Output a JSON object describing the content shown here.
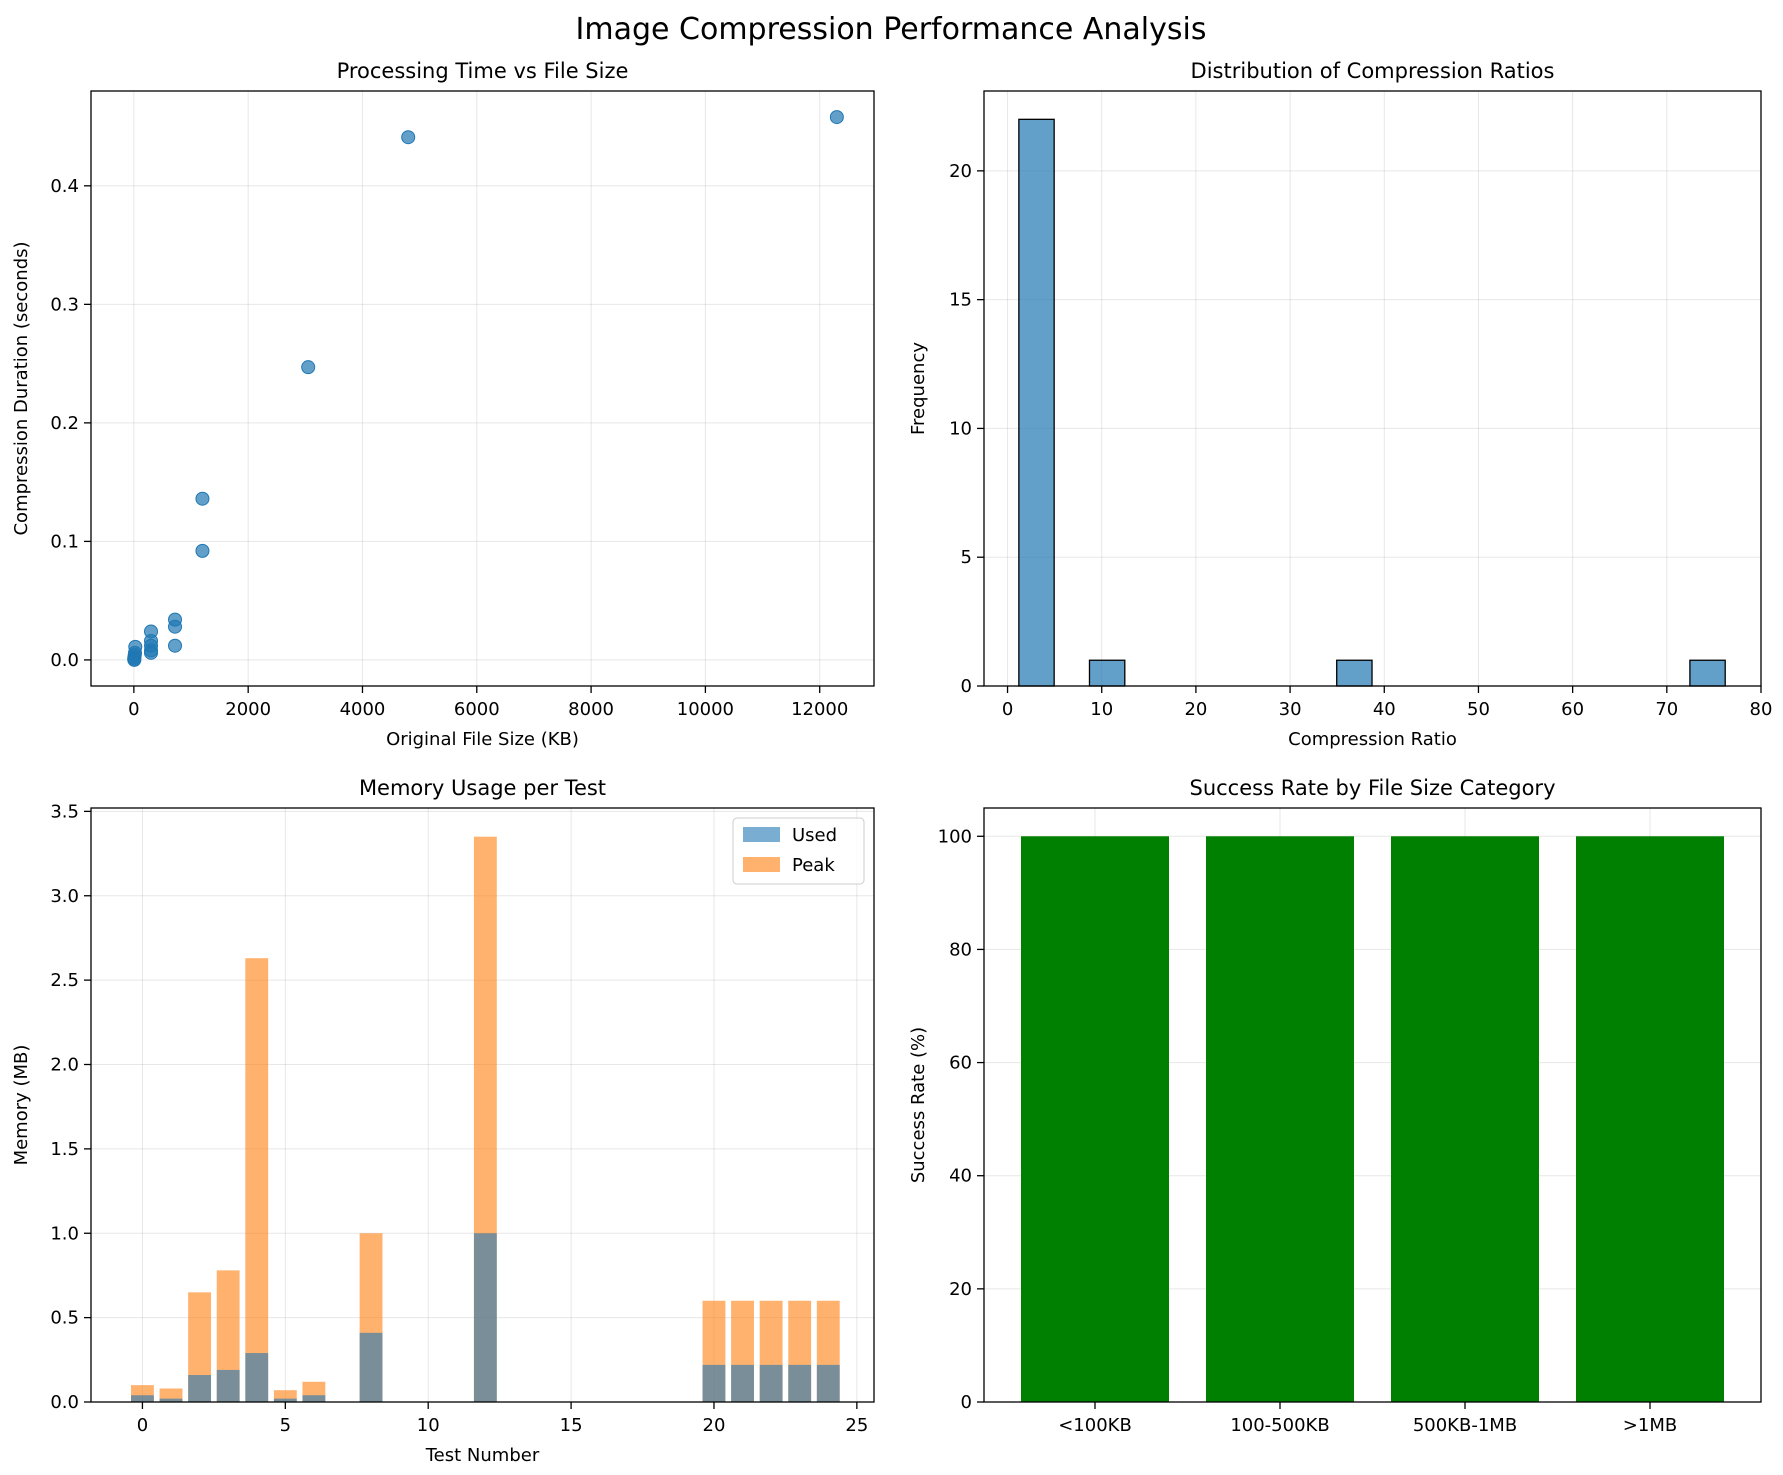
{
  "figure": {
    "suptitle": "Image Compression Performance Analysis"
  },
  "chart_data": [
    {
      "type": "scatter",
      "title": "Processing Time vs File Size",
      "xlabel": "Original File Size (KB)",
      "ylabel": "Compression Duration (seconds)",
      "xlim": [
        -750,
        12950
      ],
      "ylim": [
        -0.022,
        0.48
      ],
      "xticks": [
        0,
        2000,
        4000,
        6000,
        8000,
        10000,
        12000
      ],
      "xtick_labels": [
        "0",
        "2000",
        "4000",
        "6000",
        "8000",
        "10000",
        "12000"
      ],
      "yticks": [
        0.0,
        0.1,
        0.2,
        0.3,
        0.4
      ],
      "ytick_labels": [
        "0.0",
        "0.1",
        "0.2",
        "0.3",
        "0.4"
      ],
      "grid": true,
      "color": "#1f77b4",
      "points": [
        {
          "x": 5,
          "y": 0.001
        },
        {
          "x": 10,
          "y": 0.002
        },
        {
          "x": 15,
          "y": 0.004
        },
        {
          "x": 20,
          "y": 0.006
        },
        {
          "x": 25,
          "y": 0.011
        },
        {
          "x": 8,
          "y": 0.0
        },
        {
          "x": 300,
          "y": 0.006
        },
        {
          "x": 300,
          "y": 0.008
        },
        {
          "x": 300,
          "y": 0.012
        },
        {
          "x": 300,
          "y": 0.016
        },
        {
          "x": 300,
          "y": 0.024
        },
        {
          "x": 720,
          "y": 0.012
        },
        {
          "x": 720,
          "y": 0.028
        },
        {
          "x": 720,
          "y": 0.034
        },
        {
          "x": 1200,
          "y": 0.092
        },
        {
          "x": 1200,
          "y": 0.136
        },
        {
          "x": 3050,
          "y": 0.247
        },
        {
          "x": 4800,
          "y": 0.441
        },
        {
          "x": 12300,
          "y": 0.458
        }
      ]
    },
    {
      "type": "bar",
      "title": "Distribution of Compression Ratios",
      "xlabel": "Compression Ratio",
      "ylabel": "Frequency",
      "xlim": [
        -2.5,
        80
      ],
      "ylim": [
        0,
        23.1
      ],
      "xticks": [
        0,
        10,
        20,
        30,
        40,
        50,
        60,
        70,
        80
      ],
      "xtick_labels": [
        "0",
        "10",
        "20",
        "30",
        "40",
        "50",
        "60",
        "70",
        "80"
      ],
      "yticks": [
        0,
        5,
        10,
        15,
        20
      ],
      "ytick_labels": [
        "0",
        "5",
        "10",
        "15",
        "20"
      ],
      "grid": true,
      "color": "#1f77b4",
      "bin_range": [
        1.2,
        76.2
      ],
      "bin_count": 20,
      "counts": [
        22,
        0,
        1,
        0,
        0,
        0,
        0,
        0,
        0,
        1,
        0,
        0,
        0,
        0,
        0,
        0,
        0,
        0,
        0,
        1
      ]
    },
    {
      "type": "bar",
      "title": "Memory Usage per Test",
      "xlabel": "Test Number",
      "ylabel": "Memory (MB)",
      "xlim": [
        -1.8,
        25.6
      ],
      "ylim": [
        0,
        3.52
      ],
      "xticks": [
        0,
        5,
        10,
        15,
        20,
        25
      ],
      "xtick_labels": [
        "0",
        "5",
        "10",
        "15",
        "20",
        "25"
      ],
      "yticks": [
        0.0,
        0.5,
        1.0,
        1.5,
        2.0,
        2.5,
        3.0,
        3.5
      ],
      "ytick_labels": [
        "0.0",
        "0.5",
        "1.0",
        "1.5",
        "2.0",
        "2.5",
        "3.0",
        "3.5"
      ],
      "grid": true,
      "legend_position": "top-right",
      "x": [
        0,
        1,
        2,
        3,
        4,
        5,
        6,
        8,
        12,
        20,
        21,
        22,
        23,
        24
      ],
      "series": [
        {
          "name": "Peak",
          "color": "#ff7f0e",
          "values": [
            0.1,
            0.08,
            0.65,
            0.78,
            2.63,
            0.07,
            0.12,
            1.0,
            3.35,
            0.6,
            0.6,
            0.6,
            0.6,
            0.6
          ]
        },
        {
          "name": "Used",
          "color": "#1f77b4",
          "values": [
            0.04,
            0.02,
            0.16,
            0.19,
            0.29,
            0.02,
            0.04,
            0.41,
            1.0,
            0.22,
            0.22,
            0.22,
            0.22,
            0.22
          ]
        }
      ],
      "legend": [
        "Used",
        "Peak"
      ]
    },
    {
      "type": "bar",
      "title": "Success Rate by File Size Category",
      "xlabel": "",
      "ylabel": "Success Rate (%)",
      "ylim": [
        0,
        105
      ],
      "yticks": [
        0,
        20,
        40,
        60,
        80,
        100
      ],
      "ytick_labels": [
        "0",
        "20",
        "40",
        "60",
        "80",
        "100"
      ],
      "grid": true,
      "color": "#008000",
      "categories": [
        "<100KB",
        "100-500KB",
        "500KB-1MB",
        ">1MB"
      ],
      "values": [
        100,
        100,
        100,
        100
      ]
    }
  ]
}
